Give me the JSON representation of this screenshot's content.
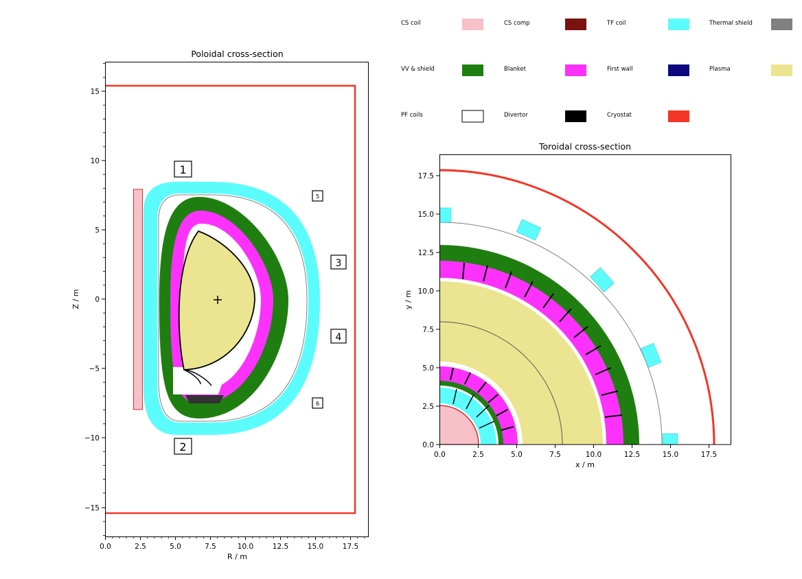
{
  "legend": {
    "items": [
      {
        "label": "CS coil",
        "color": "#f8c0c8"
      },
      {
        "label": "CS comp",
        "color": "#7a1210"
      },
      {
        "label": "TF coil",
        "color": "#5cfcfc"
      },
      {
        "label": "Thermal shield",
        "color": "#808080"
      },
      {
        "label": "VV & shield",
        "color": "#1f7e10"
      },
      {
        "label": "Blanket",
        "color": "#fc32fc"
      },
      {
        "label": "First wall",
        "color": "#0c0780"
      },
      {
        "label": "Plasma",
        "color": "#ebe591"
      },
      {
        "label": "PF coils",
        "color": "#ffffff"
      },
      {
        "label": "Divertor",
        "color": "#000000"
      },
      {
        "label": "Cryostat",
        "color": "#f43526"
      }
    ]
  },
  "poloidal": {
    "title": "Poloidal cross-section",
    "xlabel": "R / m",
    "ylabel": "Z / m",
    "xticks": [
      "0.0",
      "2.5",
      "5.0",
      "7.5",
      "10.0",
      "12.5",
      "15.0",
      "17.5"
    ],
    "yticks": [
      "15",
      "10",
      "5",
      "0",
      "−5",
      "−10",
      "−15"
    ],
    "pf_coils": [
      "1",
      "2",
      "3",
      "4",
      "5",
      "6"
    ]
  },
  "toroidal": {
    "title": "Toroidal cross-section",
    "xlabel": "x / m",
    "ylabel": "y / m",
    "xticks": [
      "0.0",
      "2.5",
      "5.0",
      "7.5",
      "10.0",
      "12.5",
      "15.0",
      "17.5"
    ],
    "yticks": [
      "0.0",
      "2.5",
      "5.0",
      "7.5",
      "10.0",
      "12.5",
      "15.0",
      "17.5"
    ]
  }
}
